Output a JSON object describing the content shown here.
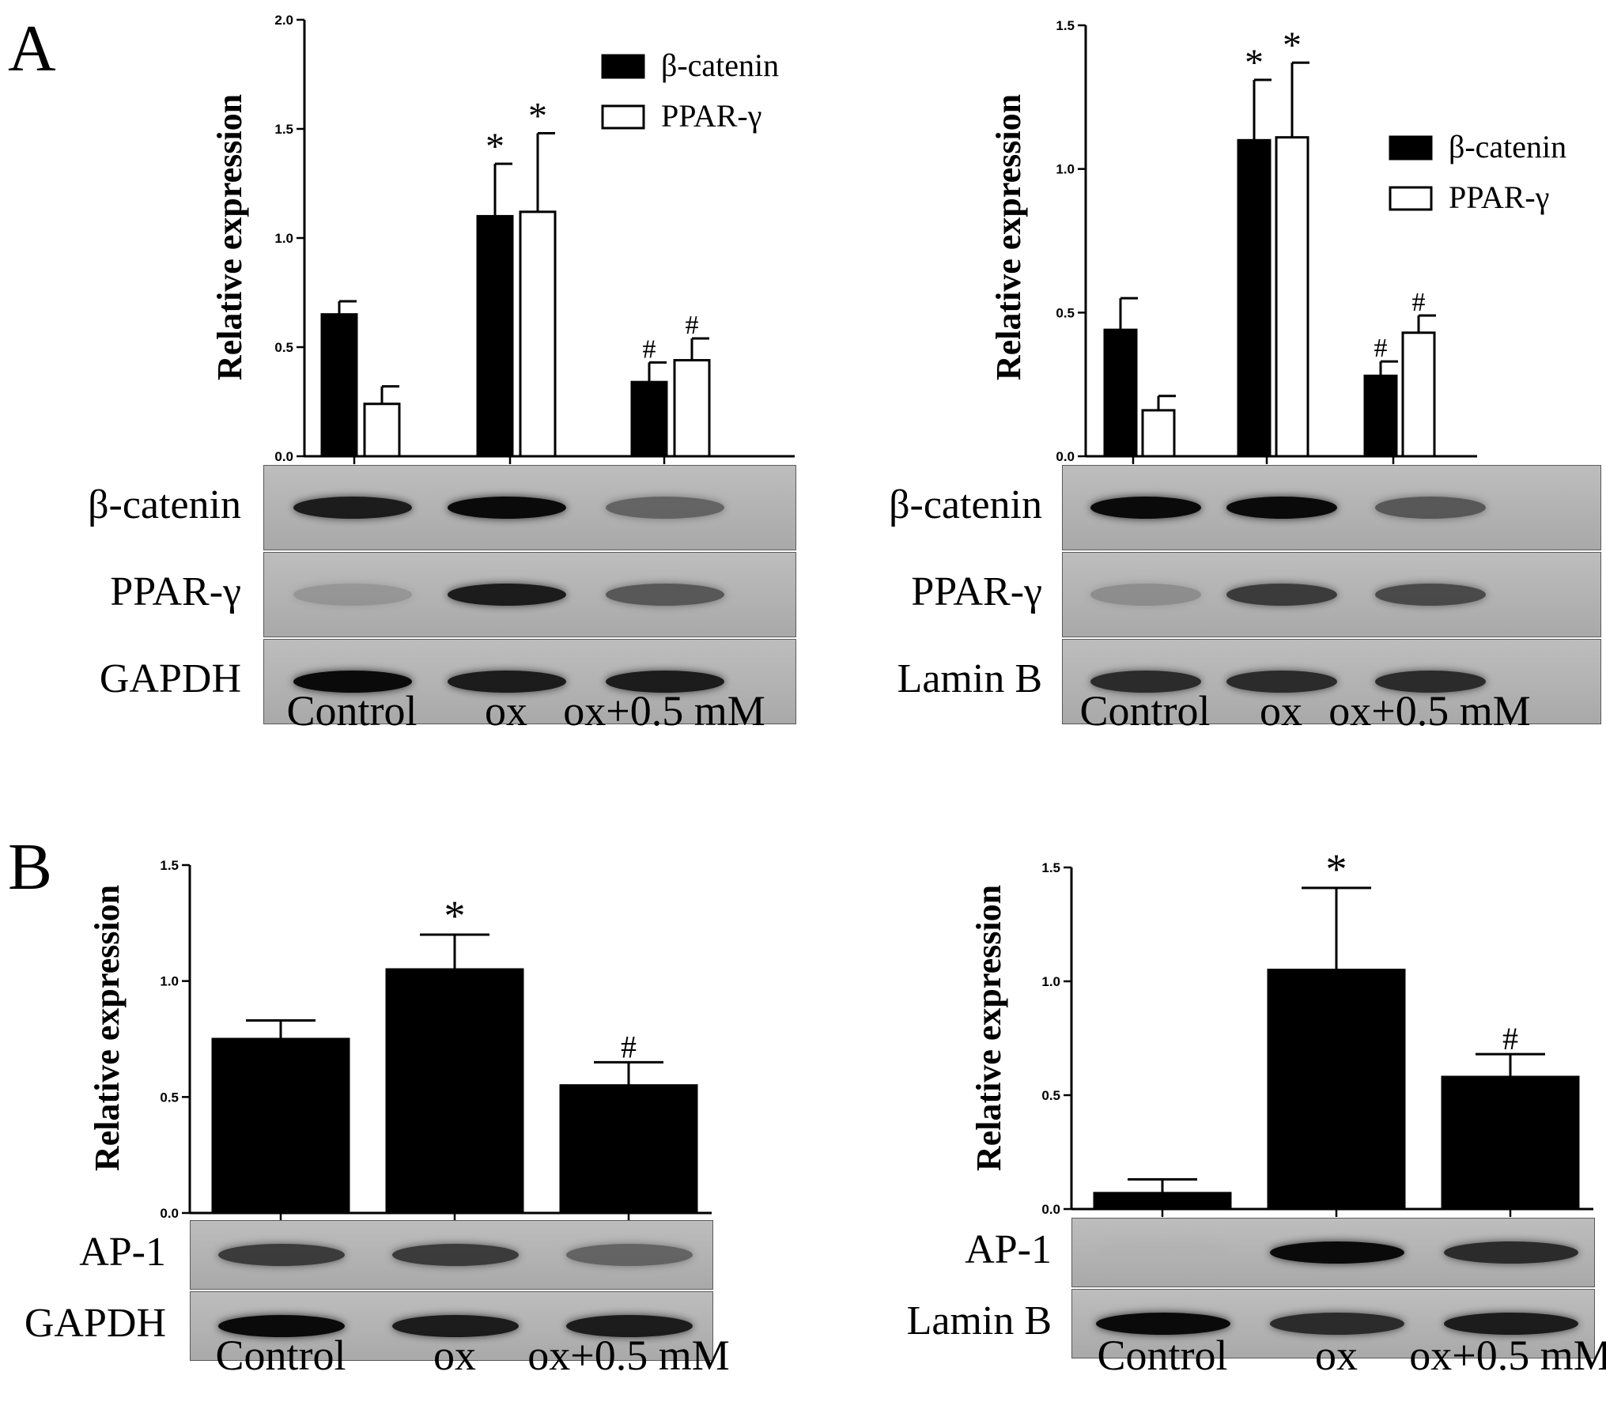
{
  "panel_letters": {
    "a": "A",
    "b": "B"
  },
  "chart_data": [
    {
      "id": "A-left",
      "type": "bar",
      "ylabel": "Relative expression",
      "ylim": [
        0,
        2.0
      ],
      "yticks": [
        0.0,
        0.5,
        1.0,
        1.5,
        2.0
      ],
      "ytick_labels": [
        "0.0",
        "0.5",
        "1.0",
        "1.5",
        "2.0"
      ],
      "categories": [
        "Control",
        "ox",
        "ox+0.5 mM"
      ],
      "series": [
        {
          "name": "β-catenin",
          "fill": "#000000",
          "values": [
            0.65,
            1.1,
            0.34
          ],
          "errors": [
            0.06,
            0.24,
            0.09
          ],
          "marks": [
            "",
            "*",
            "#"
          ]
        },
        {
          "name": "PPAR-γ",
          "fill": "#ffffff",
          "values": [
            0.24,
            1.12,
            0.44
          ],
          "errors": [
            0.08,
            0.36,
            0.1
          ],
          "marks": [
            "",
            "*",
            "#"
          ]
        }
      ],
      "legend_position": "top-right",
      "blot_rows": [
        "β-catenin",
        "PPAR-γ",
        "GAPDH"
      ],
      "lane_labels": [
        "Control",
        "ox",
        "ox+0.5 mM"
      ],
      "blot_intensity": [
        [
          0.95,
          1.0,
          0.7
        ],
        [
          0.45,
          0.95,
          0.75
        ],
        [
          1.0,
          0.95,
          0.95
        ]
      ]
    },
    {
      "id": "A-right",
      "type": "bar",
      "ylabel": "Relative expression",
      "ylim": [
        0,
        1.5
      ],
      "yticks": [
        0.0,
        0.5,
        1.0,
        1.5
      ],
      "ytick_labels": [
        "0.0",
        "0.5",
        "1.0",
        "1.5"
      ],
      "categories": [
        "Control",
        "ox",
        "ox+0.5 mM"
      ],
      "series": [
        {
          "name": "β-catenin",
          "fill": "#000000",
          "values": [
            0.44,
            1.1,
            0.28
          ],
          "errors": [
            0.11,
            0.21,
            0.05
          ],
          "marks": [
            "",
            "*",
            "#"
          ]
        },
        {
          "name": "PPAR-γ",
          "fill": "#ffffff",
          "values": [
            0.16,
            1.11,
            0.43
          ],
          "errors": [
            0.05,
            0.26,
            0.06
          ],
          "marks": [
            "",
            "*",
            "#"
          ]
        }
      ],
      "legend_position": "right",
      "blot_rows": [
        "β-catenin",
        "PPAR-γ",
        "Lamin B"
      ],
      "lane_labels": [
        "Control",
        "ox",
        "ox+0.5 mM"
      ],
      "blot_intensity": [
        [
          1.0,
          1.0,
          0.75
        ],
        [
          0.5,
          0.85,
          0.8
        ],
        [
          0.9,
          0.9,
          0.9
        ]
      ]
    },
    {
      "id": "B-left",
      "type": "bar",
      "ylabel": "Relative expression",
      "ylim": [
        0,
        1.5
      ],
      "yticks": [
        0.0,
        0.5,
        1.0,
        1.5
      ],
      "ytick_labels": [
        "0.0",
        "0.5",
        "1.0",
        "1.5"
      ],
      "categories": [
        "Control",
        "ox",
        "ox+0.5 mM"
      ],
      "series": [
        {
          "name": "",
          "fill": "#000000",
          "values": [
            0.75,
            1.05,
            0.55
          ],
          "errors": [
            0.08,
            0.15,
            0.1
          ],
          "marks": [
            "",
            "*",
            "#"
          ]
        }
      ],
      "blot_rows": [
        "AP-1",
        "GAPDH"
      ],
      "lane_labels": [
        "Control",
        "ox",
        "ox+0.5 mM"
      ],
      "blot_intensity": [
        [
          0.85,
          0.85,
          0.7
        ],
        [
          1.0,
          0.95,
          0.95
        ]
      ]
    },
    {
      "id": "B-right",
      "type": "bar",
      "ylabel": "Relative expression",
      "ylim": [
        0,
        1.5
      ],
      "yticks": [
        0.0,
        0.5,
        1.0,
        1.5
      ],
      "ytick_labels": [
        "0.0",
        "0.5",
        "1.0",
        "1.5"
      ],
      "categories": [
        "Control",
        "ox",
        "ox+0.5 mM"
      ],
      "series": [
        {
          "name": "",
          "fill": "#000000",
          "values": [
            0.07,
            1.05,
            0.58
          ],
          "errors": [
            0.06,
            0.36,
            0.1
          ],
          "marks": [
            "",
            "*",
            "#"
          ]
        }
      ],
      "blot_rows": [
        "AP-1",
        "Lamin B"
      ],
      "lane_labels": [
        "Control",
        "ox",
        "ox+0.5 mM"
      ],
      "blot_intensity": [
        [
          0.12,
          1.0,
          0.9
        ],
        [
          1.0,
          0.9,
          0.95
        ]
      ]
    }
  ]
}
